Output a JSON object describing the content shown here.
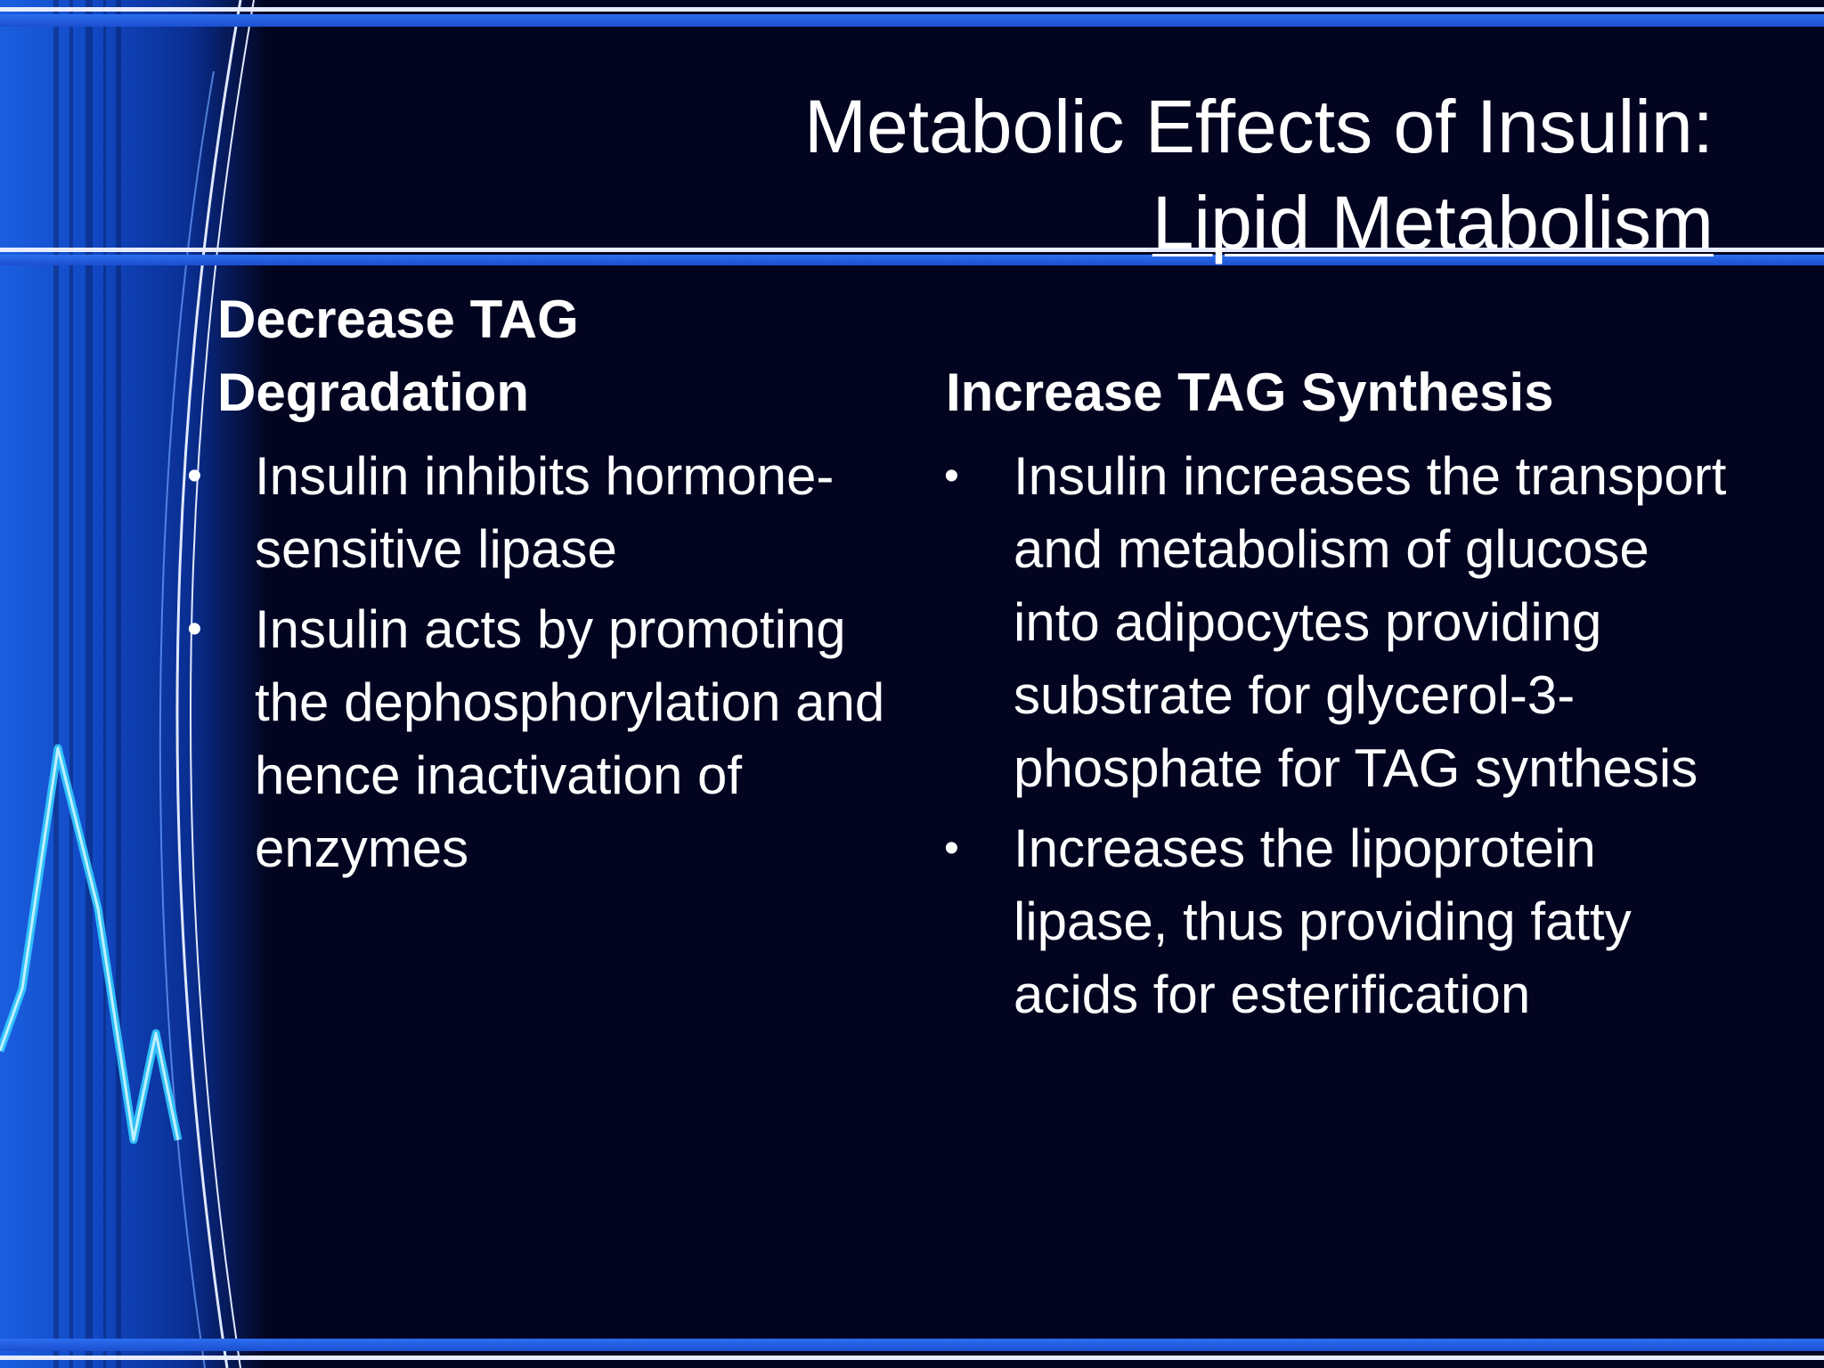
{
  "title": {
    "line1": "Metabolic Effects of Insulin:",
    "line2": "Lipid  Metabolism"
  },
  "left": {
    "heading": "Decrease TAG\nDegradation",
    "bullets": [
      "Insulin inhibits hormone-sensitive lipase",
      "Insulin acts by promoting the dephosphorylation and hence inactivation of enzymes"
    ]
  },
  "right": {
    "heading": "Increase TAG Synthesis",
    "bullets": [
      "Insulin increases the transport and metabolism of glucose into adipocytes providing substrate for glycerol-3-phosphate for TAG synthesis",
      "Increases the lipoprotein lipase, thus  providing fatty acids for esterification"
    ]
  },
  "colors": {
    "background": "#030520",
    "accent_blue": "#2c6df0",
    "text": "#ffffff"
  }
}
